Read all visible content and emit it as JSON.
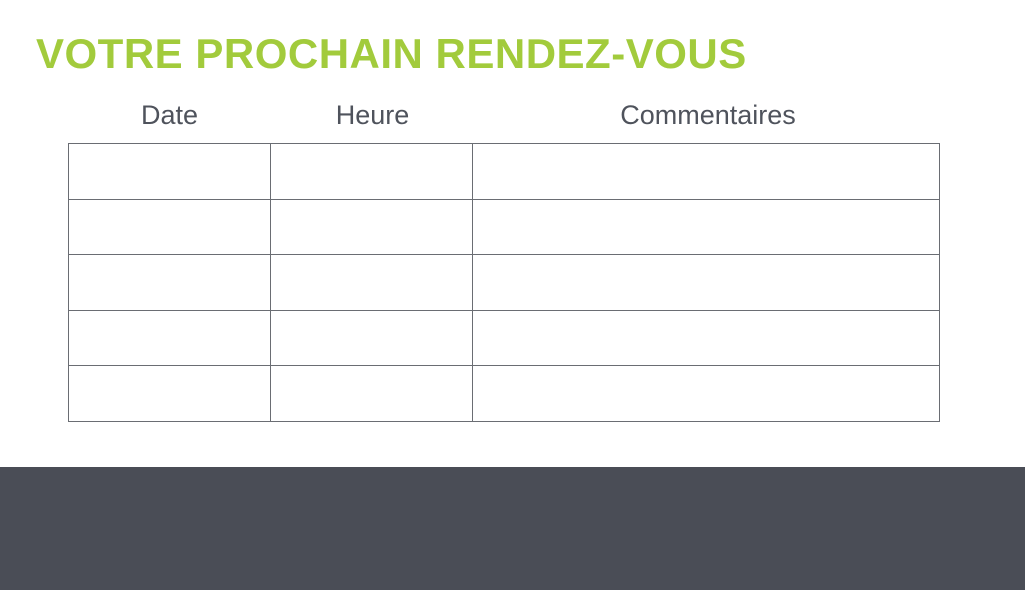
{
  "title": "VOTRE PROCHAIN RENDEZ-VOUS",
  "table": {
    "headers": [
      "Date",
      "Heure",
      "Commentaires"
    ],
    "rows": [
      [
        "",
        "",
        ""
      ],
      [
        "",
        "",
        ""
      ],
      [
        "",
        "",
        ""
      ],
      [
        "",
        "",
        ""
      ],
      [
        "",
        "",
        ""
      ]
    ]
  },
  "colors": {
    "title": "#a2cb3c",
    "footer": "#4a4d56",
    "text": "#4f535c",
    "border": "#6a6d73"
  }
}
